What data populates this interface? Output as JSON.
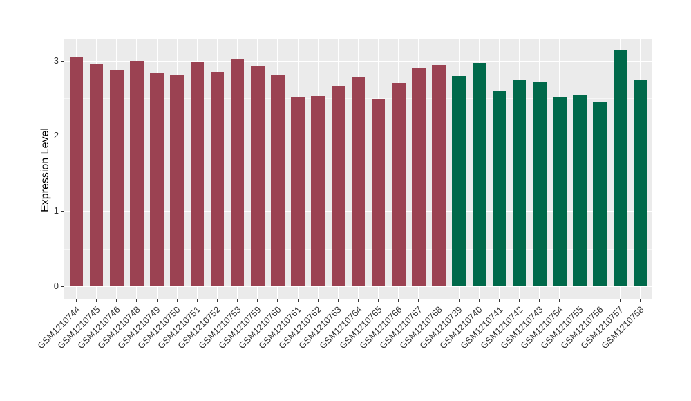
{
  "chart_data": {
    "type": "bar",
    "title": "",
    "xlabel": "",
    "ylabel": "Expression Level",
    "ylim": [
      0,
      3.29
    ],
    "yticks": [
      "0",
      "1",
      "2",
      "3"
    ],
    "minor_gridlines": [
      0.5,
      1.5,
      2.5
    ],
    "grid": true,
    "legend": false,
    "panel_bg": "#EBEBEB",
    "grid_color": "#FFFFFF",
    "axis_text_color": "#333333",
    "palette": {
      "group_left": "#9B4252",
      "group_right": "#00694A"
    },
    "categories": [
      "GSM1210744",
      "GSM1210745",
      "GSM1210746",
      "GSM1210748",
      "GSM1210749",
      "GSM1210750",
      "GSM1210751",
      "GSM1210752",
      "GSM1210753",
      "GSM1210759",
      "GSM1210760",
      "GSM1210761",
      "GSM1210762",
      "GSM1210763",
      "GSM1210764",
      "GSM1210765",
      "GSM1210766",
      "GSM1210767",
      "GSM1210768",
      "GSM1210739",
      "GSM1210740",
      "GSM1210741",
      "GSM1210742",
      "GSM1210743",
      "GSM1210754",
      "GSM1210755",
      "GSM1210756",
      "GSM1210757",
      "GSM1210758"
    ],
    "values": [
      3.05,
      2.95,
      2.88,
      3.0,
      2.83,
      2.8,
      2.98,
      2.85,
      3.02,
      2.93,
      2.8,
      2.52,
      2.53,
      2.67,
      2.78,
      2.49,
      2.7,
      2.9,
      2.94,
      2.79,
      2.97,
      2.59,
      2.74,
      2.71,
      2.51,
      2.54,
      2.45,
      3.13,
      2.74
    ],
    "bar_colors": [
      "#9B4252",
      "#9B4252",
      "#9B4252",
      "#9B4252",
      "#9B4252",
      "#9B4252",
      "#9B4252",
      "#9B4252",
      "#9B4252",
      "#9B4252",
      "#9B4252",
      "#9B4252",
      "#9B4252",
      "#9B4252",
      "#9B4252",
      "#9B4252",
      "#9B4252",
      "#9B4252",
      "#9B4252",
      "#00694A",
      "#00694A",
      "#00694A",
      "#00694A",
      "#00694A",
      "#00694A",
      "#00694A",
      "#00694A",
      "#00694A",
      "#00694A"
    ]
  }
}
